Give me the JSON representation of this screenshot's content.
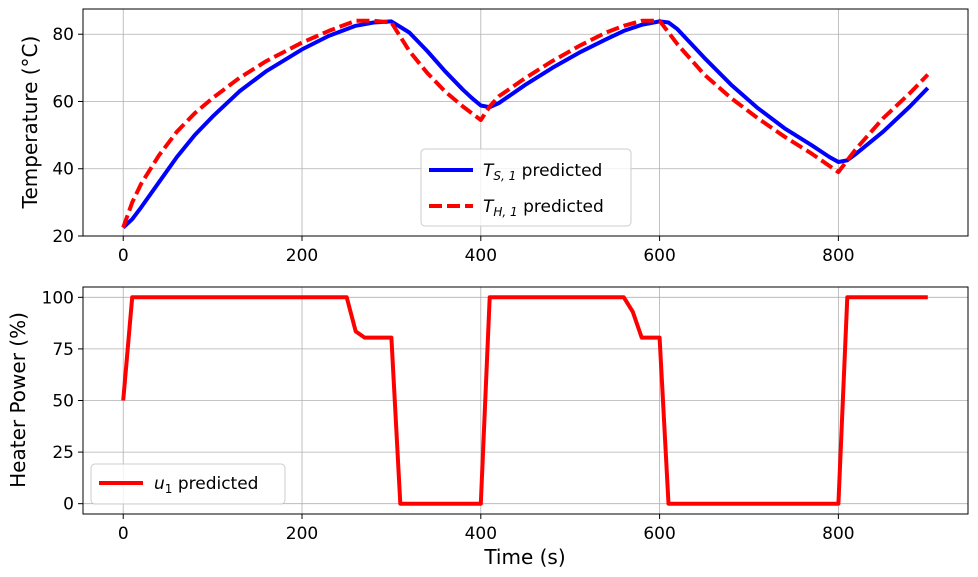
{
  "chart_data": [
    {
      "type": "line",
      "xlabel": "",
      "ylabel": "Temperature (°C)",
      "xlim": [
        -45,
        945
      ],
      "ylim": [
        20,
        87.5
      ],
      "xticks": [
        "0",
        "200",
        "400",
        "600",
        "800"
      ],
      "xtick_values": [
        0,
        200,
        400,
        600,
        800
      ],
      "yticks": [
        "20",
        "40",
        "60",
        "80"
      ],
      "ytick_values": [
        20,
        40,
        60,
        80
      ],
      "grid": true,
      "legend_position": "bottom-center",
      "series": [
        {
          "name": "T_S,1 predicted",
          "legend_main": "T",
          "legend_sub": "S, 1",
          "legend_rest": " predicted",
          "color": "#0000ff",
          "dash": "solid",
          "x": [
            0,
            10,
            20,
            40,
            60,
            80,
            100,
            130,
            160,
            200,
            230,
            260,
            280,
            300,
            320,
            340,
            360,
            380,
            390,
            400,
            410,
            420,
            450,
            480,
            510,
            540,
            560,
            580,
            600,
            610,
            620,
            650,
            680,
            710,
            740,
            770,
            790,
            800,
            810,
            820,
            850,
            880,
            900
          ],
          "y": [
            22.5,
            25,
            28.5,
            36,
            43.5,
            50,
            55.5,
            63,
            69,
            75.5,
            79.5,
            82.5,
            83.5,
            83.8,
            80.5,
            75,
            69,
            63.5,
            61,
            58.8,
            58.3,
            59.5,
            65,
            70,
            74.5,
            78.5,
            81,
            82.8,
            83.8,
            83.5,
            81.5,
            73,
            65,
            58,
            52,
            47,
            43.5,
            42,
            42.5,
            44.5,
            51,
            58.5,
            64
          ]
        },
        {
          "name": "T_H,1 predicted",
          "legend_main": "T",
          "legend_sub": "H, 1",
          "legend_rest": " predicted",
          "color": "#ff0000",
          "dash": "dashed",
          "x": [
            0,
            10,
            20,
            40,
            60,
            80,
            100,
            130,
            160,
            200,
            230,
            250,
            260,
            280,
            300,
            320,
            340,
            360,
            380,
            400,
            410,
            420,
            450,
            480,
            510,
            540,
            560,
            580,
            600,
            620,
            650,
            680,
            710,
            740,
            770,
            800,
            810,
            820,
            850,
            880,
            900
          ],
          "y": [
            22.5,
            30,
            35.5,
            44,
            51,
            56.5,
            61,
            67,
            72,
            77.5,
            81,
            83,
            84,
            84,
            83.5,
            75,
            68.5,
            63,
            58.5,
            54.5,
            58.5,
            61.5,
            67,
            72,
            76.5,
            80.5,
            82.5,
            84,
            84,
            77,
            68,
            61,
            55,
            49.5,
            44.5,
            39,
            42.5,
            46,
            55,
            62.5,
            68
          ]
        }
      ]
    },
    {
      "type": "line",
      "xlabel": "Time (s)",
      "ylabel": "Heater Power (%)",
      "xlim": [
        -45,
        945
      ],
      "ylim": [
        -5,
        105
      ],
      "xticks": [
        "0",
        "200",
        "400",
        "600",
        "800"
      ],
      "xtick_values": [
        0,
        200,
        400,
        600,
        800
      ],
      "yticks": [
        "0",
        "25",
        "50",
        "75",
        "100"
      ],
      "ytick_values": [
        0,
        25,
        50,
        75,
        100
      ],
      "grid": true,
      "legend_position": "bottom-left",
      "series": [
        {
          "name": "u_1 predicted",
          "legend_main": "u",
          "legend_sub": "1",
          "legend_rest": " predicted",
          "color": "#ff0000",
          "dash": "solid",
          "x": [
            0,
            10,
            250,
            260,
            270,
            300,
            310,
            400,
            410,
            560,
            570,
            580,
            600,
            610,
            800,
            810,
            900
          ],
          "y": [
            50,
            100,
            100,
            83.5,
            80.5,
            80.5,
            0,
            0,
            100,
            100,
            93,
            80.5,
            80.5,
            0,
            0,
            100,
            100
          ]
        }
      ]
    }
  ]
}
